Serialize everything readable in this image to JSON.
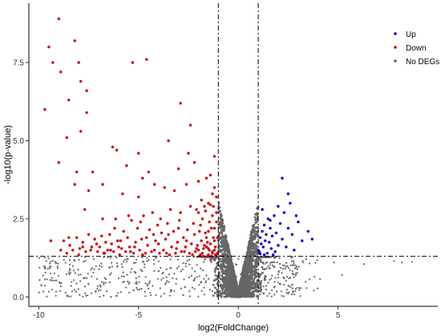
{
  "chart_data": {
    "type": "scatter",
    "title": "",
    "xlabel": "log2(FoldChange)",
    "ylabel": "-log10(p-value)",
    "xlim": [
      -10.5,
      10
    ],
    "ylim": [
      -0.3,
      9.4
    ],
    "x_ticks": [
      -10,
      -5,
      0,
      5
    ],
    "y_ticks": [
      0.0,
      2.5,
      5.0,
      7.5
    ],
    "x_tick_labels": [
      "-10",
      "-5",
      "0",
      "5"
    ],
    "y_tick_labels": [
      "0.0",
      "2.5",
      "5.0",
      "7.5"
    ],
    "grid": false,
    "legend_position": "top-right",
    "thresholds": {
      "log2fc": [
        -1,
        1
      ],
      "neg_log10_p": 1.3,
      "line_style": "dash-dot"
    },
    "colors": {
      "Up": "#0000cc",
      "Down": "#cc0000",
      "No DEGs": "#666666"
    },
    "series": [
      {
        "name": "Up",
        "color": "#0000cc",
        "points": [
          [
            1.0,
            1.5
          ],
          [
            1.1,
            1.9
          ],
          [
            1.15,
            1.7
          ],
          [
            1.2,
            2.1
          ],
          [
            1.25,
            1.6
          ],
          [
            1.3,
            2.3
          ],
          [
            1.35,
            1.8
          ],
          [
            1.4,
            2.0
          ],
          [
            1.45,
            1.4
          ],
          [
            1.5,
            2.5
          ],
          [
            1.55,
            1.75
          ],
          [
            1.6,
            2.2
          ],
          [
            1.65,
            1.55
          ],
          [
            1.7,
            1.95
          ],
          [
            1.8,
            2.6
          ],
          [
            1.85,
            1.45
          ],
          [
            1.9,
            2.05
          ],
          [
            2.0,
            1.65
          ],
          [
            2.1,
            2.35
          ],
          [
            2.2,
            1.85
          ],
          [
            2.3,
            2.7
          ],
          [
            2.4,
            1.6
          ],
          [
            2.5,
            2.2
          ],
          [
            2.6,
            3.0
          ],
          [
            2.7,
            2.0
          ],
          [
            2.8,
            1.5
          ],
          [
            3.0,
            2.4
          ],
          [
            3.2,
            1.8
          ],
          [
            3.5,
            2.1
          ],
          [
            3.7,
            1.85
          ],
          [
            2.2,
            3.8
          ],
          [
            2.5,
            3.3
          ],
          [
            1.2,
            2.8
          ],
          [
            1.3,
            1.35
          ],
          [
            1.05,
            1.45
          ],
          [
            1.75,
            1.35
          ],
          [
            2.0,
            2.9
          ],
          [
            2.9,
            2.6
          ],
          [
            1.1,
            1.38
          ],
          [
            1.6,
            2.45
          ]
        ]
      },
      {
        "name": "Down",
        "color": "#cc0000",
        "points": [
          [
            -9.0,
            8.9
          ],
          [
            -8.2,
            8.2
          ],
          [
            -9.5,
            8.0
          ],
          [
            -9.3,
            7.5
          ],
          [
            -8.9,
            7.2
          ],
          [
            -8.0,
            7.5
          ],
          [
            -7.9,
            6.9
          ],
          [
            -7.6,
            6.6
          ],
          [
            -8.5,
            6.3
          ],
          [
            -9.7,
            6.0
          ],
          [
            -5.3,
            7.5
          ],
          [
            -4.6,
            7.6
          ],
          [
            -2.9,
            6.2
          ],
          [
            -2.4,
            5.5
          ],
          [
            -3.5,
            5.0
          ],
          [
            -2.5,
            4.6
          ],
          [
            -2.2,
            4.3
          ],
          [
            -3.0,
            4.1
          ],
          [
            -4.5,
            4.0
          ],
          [
            -4.8,
            3.8
          ],
          [
            -5.0,
            4.6
          ],
          [
            -5.6,
            4.2
          ],
          [
            -6.3,
            4.8
          ],
          [
            -6.1,
            4.7
          ],
          [
            -7.6,
            5.9
          ],
          [
            -7.9,
            5.3
          ],
          [
            -8.6,
            5.1
          ],
          [
            -9.0,
            4.3
          ],
          [
            -8.1,
            4.0
          ],
          [
            -7.3,
            4.0
          ],
          [
            -7.5,
            3.4
          ],
          [
            -6.8,
            3.6
          ],
          [
            -5.8,
            3.3
          ],
          [
            -5.0,
            3.2
          ],
          [
            -4.2,
            3.6
          ],
          [
            -3.7,
            3.5
          ],
          [
            -3.2,
            3.4
          ],
          [
            -2.6,
            3.6
          ],
          [
            -2.0,
            3.7
          ],
          [
            -1.6,
            3.8
          ],
          [
            -1.4,
            3.9
          ],
          [
            -1.2,
            4.5
          ],
          [
            -1.1,
            3.2
          ],
          [
            -1.3,
            3.3
          ],
          [
            -1.5,
            3.0
          ],
          [
            -1.7,
            2.9
          ],
          [
            -2.1,
            2.8
          ],
          [
            -2.4,
            2.9
          ],
          [
            -2.9,
            2.7
          ],
          [
            -3.4,
            2.8
          ],
          [
            -3.9,
            2.5
          ],
          [
            -4.3,
            2.7
          ],
          [
            -4.9,
            2.4
          ],
          [
            -5.5,
            2.6
          ],
          [
            -6.2,
            2.2
          ],
          [
            -6.8,
            2.5
          ],
          [
            -7.7,
            2.8
          ],
          [
            -8.2,
            3.6
          ],
          [
            -9.4,
            1.8
          ],
          [
            -8.5,
            1.9
          ],
          [
            -7.8,
            1.6
          ],
          [
            -7.1,
            1.7
          ],
          [
            -6.4,
            1.5
          ],
          [
            -5.9,
            1.8
          ],
          [
            -5.2,
            1.6
          ],
          [
            -4.6,
            1.9
          ],
          [
            -4.0,
            1.7
          ],
          [
            -3.5,
            2.0
          ],
          [
            -3.0,
            2.2
          ],
          [
            -2.6,
            1.8
          ],
          [
            -2.2,
            2.0
          ],
          [
            -1.9,
            2.3
          ],
          [
            -1.5,
            2.1
          ],
          [
            -1.2,
            1.8
          ],
          [
            -1.1,
            2.4
          ],
          [
            -1.3,
            2.6
          ],
          [
            -1.6,
            1.6
          ],
          [
            -1.8,
            1.4
          ],
          [
            -2.0,
            1.5
          ],
          [
            -2.3,
            1.35
          ],
          [
            -2.7,
            1.45
          ],
          [
            -3.1,
            1.55
          ],
          [
            -3.6,
            1.4
          ],
          [
            -4.2,
            1.5
          ],
          [
            -4.8,
            1.35
          ],
          [
            -5.4,
            1.45
          ],
          [
            -6.0,
            1.6
          ],
          [
            -6.7,
            1.4
          ],
          [
            -7.4,
            1.5
          ],
          [
            -8.0,
            1.35
          ],
          [
            -8.9,
            1.5
          ],
          [
            -1.05,
            1.4
          ],
          [
            -1.15,
            1.6
          ],
          [
            -1.25,
            1.9
          ],
          [
            -1.35,
            2.2
          ],
          [
            -1.45,
            1.5
          ],
          [
            -1.55,
            1.75
          ],
          [
            -1.65,
            2.05
          ],
          [
            -1.75,
            1.55
          ],
          [
            -1.85,
            1.8
          ],
          [
            -1.95,
            2.1
          ],
          [
            -2.05,
            1.65
          ],
          [
            -2.15,
            1.45
          ],
          [
            -2.25,
            2.35
          ],
          [
            -2.35,
            1.7
          ],
          [
            -2.45,
            1.4
          ],
          [
            -2.55,
            2.15
          ],
          [
            -2.65,
            1.6
          ],
          [
            -2.75,
            1.9
          ],
          [
            -2.85,
            1.45
          ],
          [
            -2.95,
            2.45
          ],
          [
            -3.05,
            1.75
          ],
          [
            -3.15,
            1.4
          ],
          [
            -3.25,
            2.1
          ],
          [
            -3.35,
            1.6
          ],
          [
            -3.45,
            1.35
          ],
          [
            -3.55,
            2.35
          ],
          [
            -3.65,
            1.85
          ],
          [
            -3.75,
            1.5
          ],
          [
            -3.85,
            2.05
          ],
          [
            -3.95,
            1.4
          ],
          [
            -4.05,
            2.3
          ],
          [
            -4.15,
            1.8
          ],
          [
            -4.25,
            2.0
          ],
          [
            -4.35,
            1.45
          ],
          [
            -4.45,
            2.15
          ],
          [
            -4.55,
            1.65
          ],
          [
            -4.65,
            1.4
          ],
          [
            -4.75,
            2.6
          ],
          [
            -4.85,
            1.85
          ],
          [
            -4.95,
            1.5
          ],
          [
            -5.05,
            2.2
          ],
          [
            -5.15,
            1.75
          ],
          [
            -5.25,
            1.4
          ],
          [
            -5.35,
            2.45
          ],
          [
            -5.45,
            1.6
          ],
          [
            -5.55,
            1.9
          ],
          [
            -5.65,
            1.45
          ],
          [
            -5.75,
            2.1
          ],
          [
            -5.85,
            1.55
          ],
          [
            -5.95,
            1.35
          ],
          [
            -6.05,
            1.8
          ],
          [
            -6.15,
            2.5
          ],
          [
            -6.25,
            1.45
          ],
          [
            -6.35,
            1.7
          ],
          [
            -6.45,
            2.0
          ],
          [
            -6.55,
            1.5
          ],
          [
            -6.65,
            1.75
          ],
          [
            -6.75,
            1.4
          ],
          [
            -6.85,
            1.95
          ],
          [
            -6.95,
            1.6
          ],
          [
            -7.05,
            1.45
          ],
          [
            -7.2,
            1.85
          ],
          [
            -7.35,
            1.6
          ],
          [
            -7.5,
            2.0
          ],
          [
            -7.65,
            1.45
          ],
          [
            -7.8,
            1.75
          ],
          [
            -7.95,
            1.55
          ],
          [
            -8.1,
            1.9
          ],
          [
            -8.3,
            1.5
          ],
          [
            -8.45,
            1.65
          ],
          [
            -8.6,
            1.4
          ],
          [
            -8.75,
            1.8
          ],
          [
            -1.1,
            1.33
          ],
          [
            -1.2,
            1.5
          ],
          [
            -1.3,
            1.4
          ],
          [
            -1.4,
            1.7
          ],
          [
            -1.5,
            1.35
          ],
          [
            -1.6,
            1.9
          ],
          [
            -1.7,
            1.65
          ],
          [
            -1.8,
            2.5
          ],
          [
            -1.9,
            1.35
          ],
          [
            -2.0,
            2.7
          ],
          [
            -2.1,
            1.55
          ],
          [
            -1.2,
            2.2
          ],
          [
            -1.25,
            2.9
          ],
          [
            -1.35,
            1.3
          ],
          [
            -1.45,
            2.4
          ],
          [
            -1.55,
            1.3
          ],
          [
            -1.65,
            2.75
          ],
          [
            -1.75,
            1.3
          ],
          [
            -1.85,
            3.1
          ],
          [
            -1.95,
            1.3
          ],
          [
            -1.05,
            1.9
          ],
          [
            -1.1,
            2.7
          ],
          [
            -1.15,
            1.35
          ],
          [
            -1.2,
            3.5
          ],
          [
            -1.3,
            1.45
          ],
          [
            -1.4,
            2.95
          ],
          [
            -1.5,
            1.55
          ]
        ]
      },
      {
        "name": "No DEGs",
        "color": "#666666",
        "points": []
      }
    ]
  }
}
